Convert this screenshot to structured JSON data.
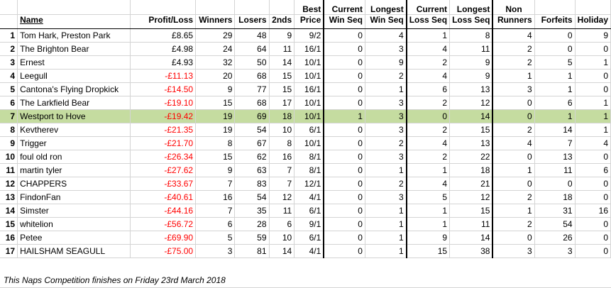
{
  "headers": {
    "name": "Name",
    "profit_loss": "Profit/Loss",
    "winners": "Winners",
    "losers": "Losers",
    "seconds": "2nds",
    "best_price_1": "Best",
    "best_price_2": "Price",
    "current_win_1": "Current",
    "current_win_2": "Win Seq",
    "longest_win_1": "Longest",
    "longest_win_2": "Win Seq",
    "current_loss_1": "Current",
    "current_loss_2": "Loss Seq",
    "longest_loss_1": "Longest",
    "longest_loss_2": "Loss Seq",
    "non_runners_1": "Non",
    "non_runners_2": "Runners",
    "forfeits": "Forfeits",
    "holiday": "Holiday"
  },
  "rows": [
    {
      "rank": "1",
      "name": "Tom Hark, Preston Park",
      "pl": "£8.65",
      "neg": false,
      "w": "29",
      "l": "48",
      "s": "9",
      "bp": "9/2",
      "cw": "0",
      "lw": "4",
      "cl": "1",
      "ll": "8",
      "nr": "4",
      "f": "0",
      "h": "9"
    },
    {
      "rank": "2",
      "name": "The Brighton Bear",
      "pl": "£4.98",
      "neg": false,
      "w": "24",
      "l": "64",
      "s": "11",
      "bp": "16/1",
      "cw": "0",
      "lw": "3",
      "cl": "4",
      "ll": "11",
      "nr": "2",
      "f": "0",
      "h": "0"
    },
    {
      "rank": "3",
      "name": "Ernest",
      "pl": "£4.93",
      "neg": false,
      "w": "32",
      "l": "50",
      "s": "14",
      "bp": "10/1",
      "cw": "0",
      "lw": "9",
      "cl": "2",
      "ll": "9",
      "nr": "2",
      "f": "5",
      "h": "1"
    },
    {
      "rank": "4",
      "name": "Leegull",
      "pl": "-£11.13",
      "neg": true,
      "w": "20",
      "l": "68",
      "s": "15",
      "bp": "10/1",
      "cw": "0",
      "lw": "2",
      "cl": "4",
      "ll": "9",
      "nr": "1",
      "f": "1",
      "h": "0"
    },
    {
      "rank": "5",
      "name": "Cantona's Flying Dropkick",
      "pl": "-£14.50",
      "neg": true,
      "w": "9",
      "l": "77",
      "s": "15",
      "bp": "16/1",
      "cw": "0",
      "lw": "1",
      "cl": "6",
      "ll": "13",
      "nr": "3",
      "f": "1",
      "h": "0"
    },
    {
      "rank": "6",
      "name": "The Larkfield Bear",
      "pl": "-£19.10",
      "neg": true,
      "w": "15",
      "l": "68",
      "s": "17",
      "bp": "10/1",
      "cw": "0",
      "lw": "3",
      "cl": "2",
      "ll": "12",
      "nr": "0",
      "f": "6",
      "h": "1"
    },
    {
      "rank": "7",
      "name": "Westport to Hove",
      "pl": "-£19.42",
      "neg": true,
      "w": "19",
      "l": "69",
      "s": "18",
      "bp": "10/1",
      "cw": "1",
      "lw": "3",
      "cl": "0",
      "ll": "14",
      "nr": "0",
      "f": "1",
      "h": "1",
      "highlight": true
    },
    {
      "rank": "8",
      "name": "Kevtherev",
      "pl": "-£21.35",
      "neg": true,
      "w": "19",
      "l": "54",
      "s": "10",
      "bp": "6/1",
      "cw": "0",
      "lw": "3",
      "cl": "2",
      "ll": "15",
      "nr": "2",
      "f": "14",
      "h": "1"
    },
    {
      "rank": "9",
      "name": "Trigger",
      "pl": "-£21.70",
      "neg": true,
      "w": "8",
      "l": "67",
      "s": "8",
      "bp": "10/1",
      "cw": "0",
      "lw": "2",
      "cl": "4",
      "ll": "13",
      "nr": "4",
      "f": "7",
      "h": "4"
    },
    {
      "rank": "10",
      "name": "foul old ron",
      "pl": "-£26.34",
      "neg": true,
      "w": "15",
      "l": "62",
      "s": "16",
      "bp": "8/1",
      "cw": "0",
      "lw": "3",
      "cl": "2",
      "ll": "22",
      "nr": "0",
      "f": "13",
      "h": "0"
    },
    {
      "rank": "11",
      "name": "martin tyler",
      "pl": "-£27.62",
      "neg": true,
      "w": "9",
      "l": "63",
      "s": "7",
      "bp": "8/1",
      "cw": "0",
      "lw": "1",
      "cl": "1",
      "ll": "18",
      "nr": "1",
      "f": "11",
      "h": "6"
    },
    {
      "rank": "12",
      "name": "CHAPPERS",
      "pl": "-£33.67",
      "neg": true,
      "w": "7",
      "l": "83",
      "s": "7",
      "bp": "12/1",
      "cw": "0",
      "lw": "2",
      "cl": "4",
      "ll": "21",
      "nr": "0",
      "f": "0",
      "h": "0"
    },
    {
      "rank": "13",
      "name": "FindonFan",
      "pl": "-£40.61",
      "neg": true,
      "w": "16",
      "l": "54",
      "s": "12",
      "bp": "4/1",
      "cw": "0",
      "lw": "3",
      "cl": "5",
      "ll": "12",
      "nr": "2",
      "f": "18",
      "h": "0"
    },
    {
      "rank": "14",
      "name": "Simster",
      "pl": "-£44.16",
      "neg": true,
      "w": "7",
      "l": "35",
      "s": "11",
      "bp": "6/1",
      "cw": "0",
      "lw": "1",
      "cl": "1",
      "ll": "15",
      "nr": "1",
      "f": "31",
      "h": "16"
    },
    {
      "rank": "15",
      "name": "whitelion",
      "pl": "-£56.72",
      "neg": true,
      "w": "6",
      "l": "28",
      "s": "6",
      "bp": "9/1",
      "cw": "0",
      "lw": "1",
      "cl": "1",
      "ll": "11",
      "nr": "2",
      "f": "54",
      "h": "0"
    },
    {
      "rank": "16",
      "name": "Petee",
      "pl": "-£69.90",
      "neg": true,
      "w": "5",
      "l": "59",
      "s": "10",
      "bp": "6/1",
      "cw": "0",
      "lw": "1",
      "cl": "9",
      "ll": "14",
      "nr": "0",
      "f": "26",
      "h": "0"
    },
    {
      "rank": "17",
      "name": "HAILSHAM SEAGULL",
      "pl": "-£75.00",
      "neg": true,
      "w": "3",
      "l": "81",
      "s": "14",
      "bp": "4/1",
      "cw": "0",
      "lw": "1",
      "cl": "15",
      "ll": "38",
      "nr": "3",
      "f": "3",
      "h": "0"
    }
  ],
  "footer": "This Naps Competition finishes on Friday 23rd March 2018",
  "colors": {
    "highlight": "#c5dca0",
    "negative": "#ff0000",
    "gridline": "#d4d4d4"
  }
}
